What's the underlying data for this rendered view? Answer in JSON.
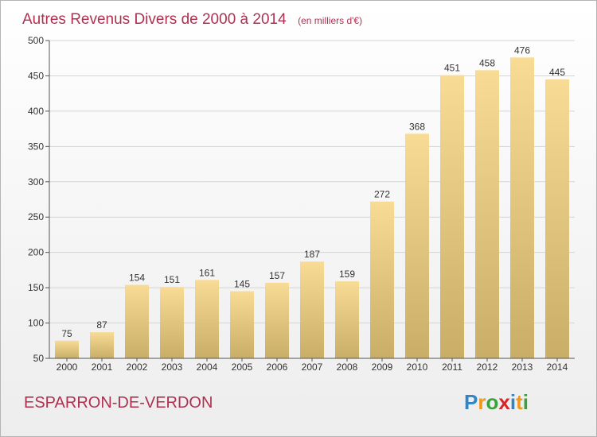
{
  "chart_data": {
    "type": "bar",
    "title": "Autres Revenus Divers de 2000 à 2014",
    "subtitle": "(en milliers d'€)",
    "categories": [
      "2000",
      "2001",
      "2002",
      "2003",
      "2004",
      "2005",
      "2006",
      "2007",
      "2008",
      "2009",
      "2010",
      "2011",
      "2012",
      "2013",
      "2014"
    ],
    "values": [
      75,
      87,
      154,
      151,
      161,
      145,
      157,
      187,
      159,
      272,
      368,
      451,
      458,
      476,
      445
    ],
    "ylim": [
      50,
      500
    ],
    "yticks": [
      50,
      100,
      150,
      200,
      250,
      300,
      350,
      400,
      450,
      500
    ],
    "xlabel": "",
    "ylabel": "",
    "grid": true,
    "bar_color_light": "#f8dc95",
    "bar_color_dark": "#c9ae68",
    "title_color": "#b03050"
  },
  "footer": {
    "place_name": "ESPARRON-DE-VERDON",
    "logo_letters": [
      "P",
      "r",
      "o",
      "x",
      "i",
      "t",
      "i"
    ],
    "logo_colors": [
      "#2e86c8",
      "#f29718",
      "#3aa23a",
      "#d8232a",
      "#2e86c8",
      "#f29718",
      "#3aa23a"
    ]
  }
}
